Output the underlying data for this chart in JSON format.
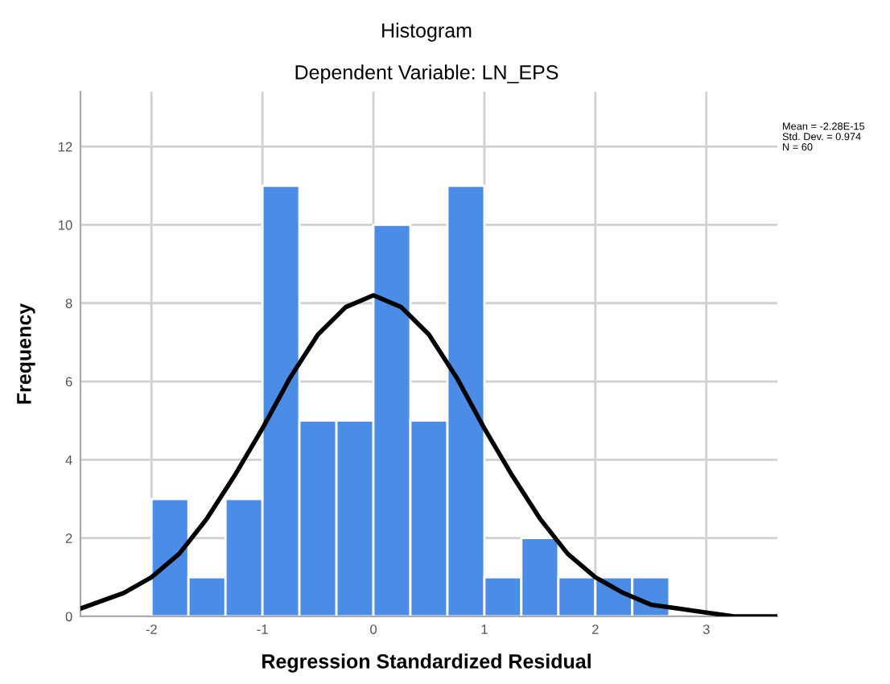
{
  "chart_data": {
    "type": "histogram",
    "title": "Histogram",
    "subtitle": "Dependent Variable: LN_EPS",
    "xlabel": "Regression Standardized Residual",
    "ylabel": "Frequency",
    "annotations": [
      "Mean = -2.28E-15\nStd. Dev. = 0.974\nN = 60"
    ],
    "series": [
      {
        "color": "#4a8ce6",
        "bins": [
          -2,
          -1.667,
          -1.333,
          -1,
          -0.667,
          -0.333,
          0,
          0.333,
          0.667,
          1,
          1.333,
          1.667,
          2,
          2.333,
          2.667
        ],
        "values": [
          3,
          1,
          3,
          11,
          5,
          5,
          10,
          5,
          11,
          1,
          2,
          1,
          1,
          1
        ]
      },
      {
        "type": "line",
        "color": "#000000",
        "x": [
          -2.64,
          -2.25,
          -2,
          -1.75,
          -1.5,
          -1.25,
          -1,
          -0.75,
          -0.5,
          -0.25,
          0,
          0.25,
          0.5,
          0.75,
          1,
          1.25,
          1.5,
          1.75,
          2,
          2.25,
          2.5,
          2.75,
          3,
          3.25,
          3.64
        ],
        "values": [
          0.2,
          0.6,
          1.0,
          1.6,
          2.5,
          3.6,
          4.8,
          6.1,
          7.2,
          7.9,
          8.2,
          7.9,
          7.2,
          6.1,
          4.8,
          3.6,
          2.5,
          1.6,
          1.0,
          0.6,
          0.3,
          0.2,
          0.1,
          0.0,
          0.0
        ]
      }
    ],
    "xlim": [
      -2.64,
      3.64
    ],
    "ylim": [
      0,
      13.4
    ],
    "xticks": [
      -2,
      -1,
      0,
      1,
      2,
      3
    ],
    "yticks": [
      0,
      2,
      4,
      6,
      8,
      10,
      12
    ],
    "grid": true,
    "legend": false
  }
}
